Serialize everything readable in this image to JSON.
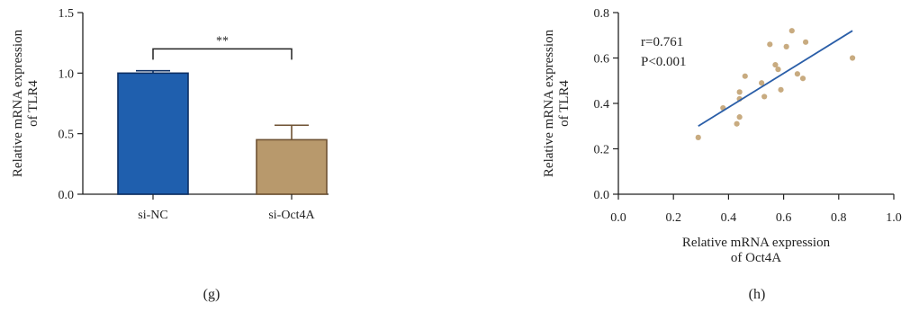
{
  "colors": {
    "axis": "#222222",
    "bar_sinc": "#1f5fae",
    "bar_sinc_edge": "#0d2f63",
    "bar_sioct": "#b8996c",
    "bar_sioct_edge": "#6e5233",
    "scatter_point": "#c8ab80",
    "fit_line": "#2a5ea8"
  },
  "chart_data": [
    {
      "type": "bar",
      "panel_label": "(g)",
      "ylabel_lines": [
        "Relative mRNA expression",
        "of TLR4"
      ],
      "categories": [
        "si-NC",
        "si-Oct4A"
      ],
      "values": [
        1.0,
        0.45
      ],
      "errors": [
        0.02,
        0.12
      ],
      "ylim": [
        0,
        1.5
      ],
      "yticks": [
        0.0,
        0.5,
        1.0,
        1.5
      ],
      "ytick_labels": [
        "0.0",
        "0.5",
        "1.0",
        "1.5"
      ],
      "significance": {
        "between": [
          0,
          1
        ],
        "label": "**",
        "y": 1.2
      }
    },
    {
      "type": "scatter",
      "panel_label": "(h)",
      "xlabel_lines": [
        "Relative mRNA expression",
        "of Oct4A"
      ],
      "ylabel_lines": [
        "Relative mRNA expression",
        "of TLR4"
      ],
      "xlim": [
        0.0,
        1.0
      ],
      "ylim": [
        0.0,
        0.8
      ],
      "xticks": [
        0.0,
        0.2,
        0.4,
        0.6,
        0.8,
        1.0
      ],
      "xtick_labels": [
        "0.0",
        "0.2",
        "0.4",
        "0.6",
        "0.8",
        "1.0"
      ],
      "yticks": [
        0.0,
        0.2,
        0.4,
        0.6,
        0.8
      ],
      "ytick_labels": [
        "0.0",
        "0.2",
        "0.4",
        "0.6",
        "0.8"
      ],
      "annotations": [
        "r=0.761",
        "P<0.001"
      ],
      "points": [
        {
          "x": 0.29,
          "y": 0.25
        },
        {
          "x": 0.38,
          "y": 0.38
        },
        {
          "x": 0.43,
          "y": 0.31
        },
        {
          "x": 0.44,
          "y": 0.42
        },
        {
          "x": 0.44,
          "y": 0.45
        },
        {
          "x": 0.44,
          "y": 0.34
        },
        {
          "x": 0.46,
          "y": 0.52
        },
        {
          "x": 0.52,
          "y": 0.49
        },
        {
          "x": 0.53,
          "y": 0.43
        },
        {
          "x": 0.55,
          "y": 0.66
        },
        {
          "x": 0.57,
          "y": 0.57
        },
        {
          "x": 0.58,
          "y": 0.55
        },
        {
          "x": 0.59,
          "y": 0.46
        },
        {
          "x": 0.61,
          "y": 0.65
        },
        {
          "x": 0.63,
          "y": 0.72
        },
        {
          "x": 0.65,
          "y": 0.53
        },
        {
          "x": 0.67,
          "y": 0.51
        },
        {
          "x": 0.68,
          "y": 0.67
        },
        {
          "x": 0.85,
          "y": 0.6
        }
      ],
      "fit_line": {
        "x": [
          0.29,
          0.85
        ],
        "y": [
          0.3,
          0.72
        ]
      }
    }
  ]
}
